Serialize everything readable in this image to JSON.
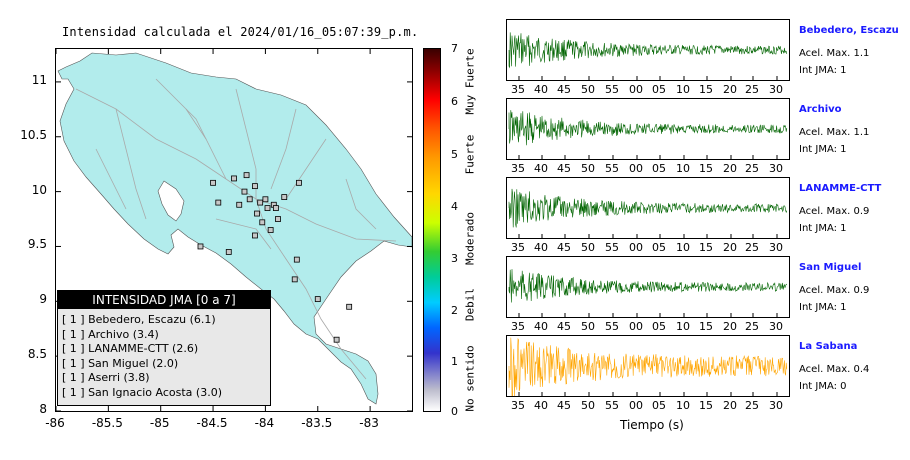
{
  "title": "Intensidad calculada el 2024/01/16_05:07:39_p.m.",
  "map": {
    "lat_ticks": [
      "11",
      "10.5",
      "10",
      "9.5",
      "9",
      "8.5",
      "8"
    ],
    "lon_ticks": [
      "-86",
      "-85.5",
      "-85",
      "-84.5",
      "-84",
      "-83.5",
      "-83"
    ],
    "lat_range": [
      8,
      11.3
    ],
    "lon_range": [
      -86,
      -82.6
    ],
    "land_color": "#b2ecec",
    "road_color": "#a9a9a9",
    "stations": [
      {
        "lon": -84.15,
        "lat": 9.93
      },
      {
        "lon": -84.05,
        "lat": 9.9
      },
      {
        "lon": -84.0,
        "lat": 9.93
      },
      {
        "lon": -83.98,
        "lat": 9.85
      },
      {
        "lon": -84.1,
        "lat": 10.05
      },
      {
        "lon": -84.2,
        "lat": 10.0
      },
      {
        "lon": -83.92,
        "lat": 9.88
      },
      {
        "lon": -84.08,
        "lat": 9.8
      },
      {
        "lon": -84.25,
        "lat": 9.88
      },
      {
        "lon": -84.45,
        "lat": 9.9
      },
      {
        "lon": -84.5,
        "lat": 10.08
      },
      {
        "lon": -84.3,
        "lat": 10.12
      },
      {
        "lon": -84.18,
        "lat": 10.15
      },
      {
        "lon": -84.03,
        "lat": 9.72
      },
      {
        "lon": -83.88,
        "lat": 9.75
      },
      {
        "lon": -83.95,
        "lat": 9.65
      },
      {
        "lon": -84.1,
        "lat": 9.6
      },
      {
        "lon": -83.68,
        "lat": 10.08
      },
      {
        "lon": -84.62,
        "lat": 9.5
      },
      {
        "lon": -84.35,
        "lat": 9.45
      },
      {
        "lon": -83.7,
        "lat": 9.38
      },
      {
        "lon": -83.72,
        "lat": 9.2
      },
      {
        "lon": -83.5,
        "lat": 9.02
      },
      {
        "lon": -83.2,
        "lat": 8.95
      },
      {
        "lon": -83.32,
        "lat": 8.65
      },
      {
        "lon": -83.9,
        "lat": 9.85
      },
      {
        "lon": -83.82,
        "lat": 9.95
      }
    ]
  },
  "legend": {
    "header": "INTENSIDAD JMA [0 a 7]",
    "items": [
      "[ 1 ] Bebedero, Escazu (6.1)",
      "[ 1 ] Archivo (3.4)",
      "[ 1 ] LANAMME-CTT (2.6)",
      "[ 1 ] San Miguel (2.0)",
      "[ 1 ] Aserri (3.8)",
      "[ 1 ] San Ignacio Acosta (3.0)"
    ]
  },
  "colorbar": {
    "values": [
      "7",
      "6",
      "5",
      "4",
      "3",
      "2",
      "1",
      "0"
    ],
    "words": [
      "Muy Fuerte",
      "Fuerte",
      "Moderado",
      "Debil",
      "No sentido"
    ]
  },
  "traces": [
    {
      "name": "Bebedero, Escazu",
      "acel": "Acel. Max. 1.1",
      "int": "Int JMA: 1",
      "color": "#006400",
      "ticks": [
        "35",
        "40",
        "45",
        "50",
        "55",
        "00",
        "05",
        "10",
        "15",
        "20",
        "25",
        "30"
      ],
      "decay": 0.3
    },
    {
      "name": "Archivo",
      "acel": "Acel. Max. 1.1",
      "int": "Int JMA: 1",
      "color": "#006400",
      "ticks": [
        "35",
        "40",
        "45",
        "50",
        "55",
        "00",
        "05",
        "10",
        "15",
        "20",
        "25",
        "30"
      ],
      "decay": 0.25
    },
    {
      "name": "LANAMME-CTT",
      "acel": "Acel. Max. 0.9",
      "int": "Int JMA: 1",
      "color": "#006400",
      "ticks": [
        "35",
        "40",
        "45",
        "50",
        "55",
        "00",
        "05",
        "10",
        "15",
        "20",
        "25",
        "30"
      ],
      "decay": 0.22
    },
    {
      "name": "San Miguel",
      "acel": "Acel. Max. 0.9",
      "int": "Int JMA: 1",
      "color": "#006400",
      "ticks": [
        "35",
        "40",
        "45",
        "50",
        "55",
        "00",
        "05",
        "10",
        "15",
        "20",
        "25",
        "30"
      ],
      "decay": 0.35
    },
    {
      "name": "La Sabana",
      "acel": "Acel. Max. 0.4",
      "int": "Int JMA: 0",
      "color": "#ffa500",
      "ticks": [
        "35",
        "40",
        "45",
        "50",
        "55",
        "00",
        "05",
        "10",
        "15",
        "20",
        "25",
        "30"
      ],
      "decay": 0.05
    }
  ],
  "xaxis_title": "Tiempo (s)"
}
